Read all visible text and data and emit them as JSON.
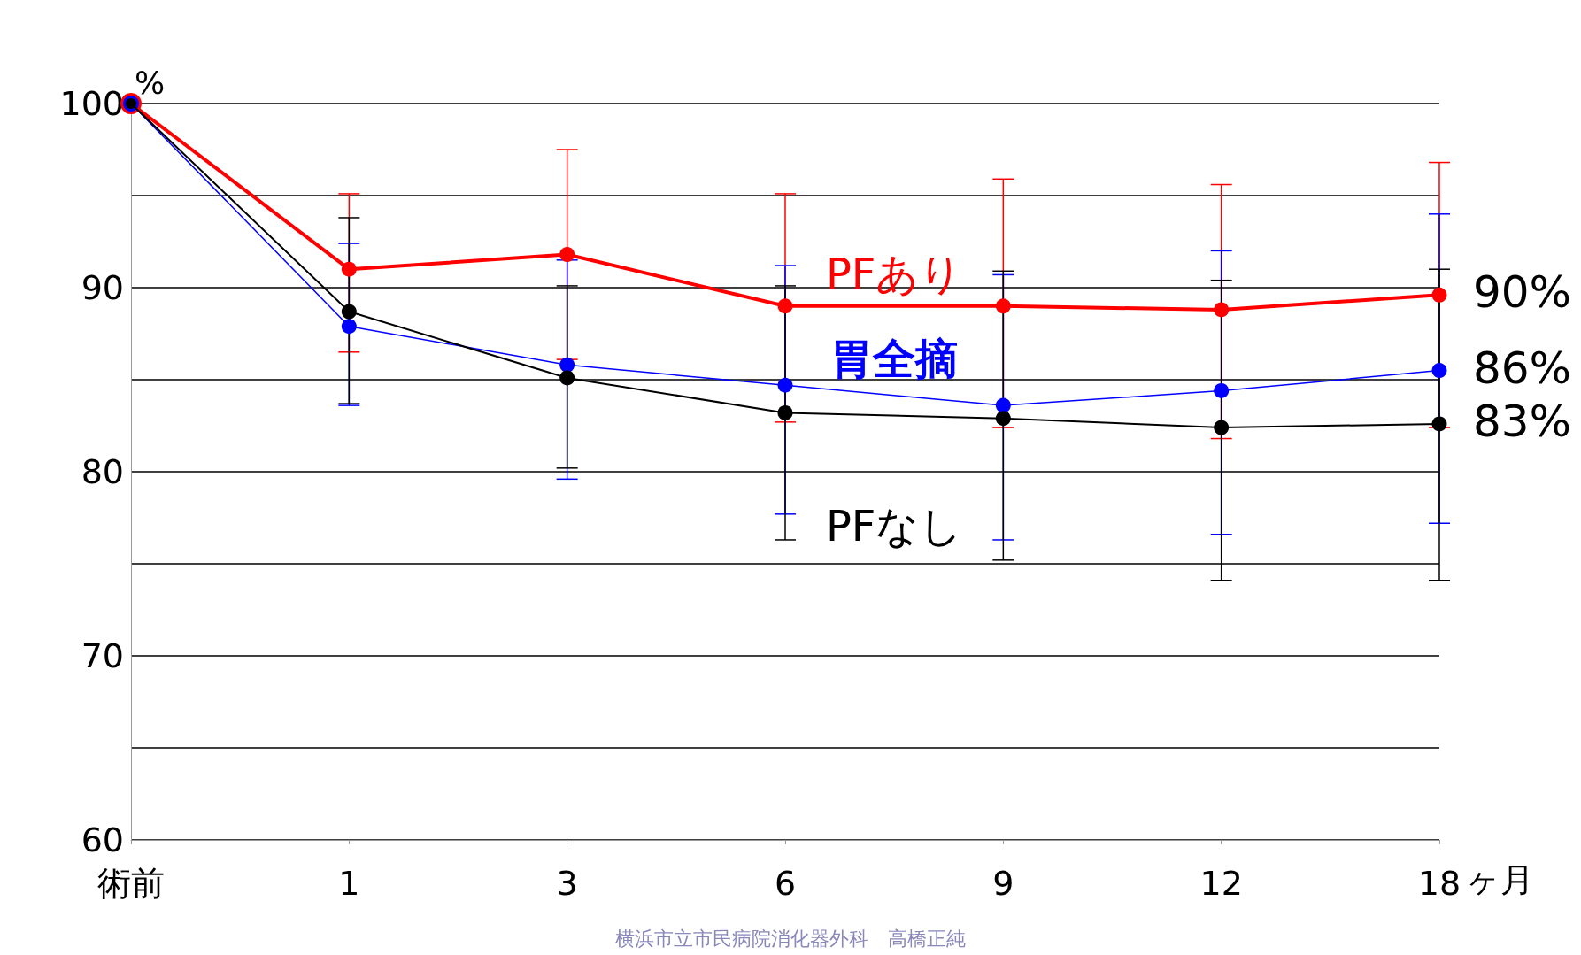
{
  "chart_data": {
    "type": "line",
    "ylabel": "%",
    "xlabel": "ヶ月",
    "categories": [
      "術前",
      "1",
      "3",
      "6",
      "9",
      "12",
      "18"
    ],
    "ylim": [
      60,
      100
    ],
    "yticks": [
      60,
      {
        "value": 65,
        "label": null
      },
      70,
      {
        "value": 75,
        "label": null
      },
      80,
      {
        "value": 85,
        "label": null
      },
      90,
      {
        "value": 95,
        "label": null
      },
      100
    ],
    "grid": "y",
    "legend": false,
    "marker": "circle",
    "line_style": "solid",
    "series": [
      {
        "name": "PFあり",
        "color": "#ff0000",
        "values": [
          100,
          91.0,
          91.8,
          89.0,
          89.0,
          88.8,
          89.6
        ],
        "errors": [
          null,
          [
            86.5,
            95.1
          ],
          [
            86.1,
            97.5
          ],
          [
            82.7,
            95.1
          ],
          [
            82.4,
            95.9
          ],
          [
            81.8,
            95.6
          ],
          [
            82.4,
            96.8
          ]
        ]
      },
      {
        "name": "胃全摘",
        "color": "#0000ff",
        "values": [
          100,
          87.9,
          85.8,
          84.7,
          83.6,
          84.4,
          85.5
        ],
        "errors": [
          null,
          [
            83.6,
            92.4
          ],
          [
            79.6,
            91.5
          ],
          [
            77.7,
            91.2
          ],
          [
            76.3,
            90.7
          ],
          [
            76.6,
            92.0
          ],
          [
            77.2,
            94.0
          ]
        ]
      },
      {
        "name": "PFなし",
        "color": "#000000",
        "values": [
          100,
          88.7,
          85.1,
          83.2,
          82.9,
          82.4,
          82.6
        ],
        "errors": [
          null,
          [
            83.7,
            93.8
          ],
          [
            80.2,
            90.1
          ],
          [
            76.3,
            90.1
          ],
          [
            75.2,
            90.9
          ],
          [
            74.1,
            90.4
          ],
          [
            74.1,
            91.0
          ]
        ]
      }
    ],
    "annotations": [
      {
        "text": "90%",
        "x": "18",
        "y": 89.6
      },
      {
        "text": "86%",
        "x": "18",
        "y": 85.5
      },
      {
        "text": "83%",
        "x": "18",
        "y": 82.6
      },
      "横浜市立市民病院消化器外科　高橋正純"
    ]
  }
}
